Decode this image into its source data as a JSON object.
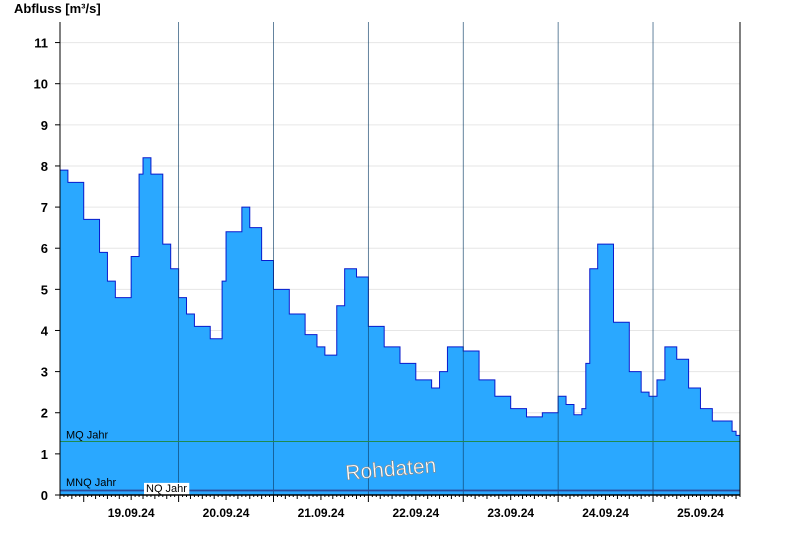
{
  "chart_data": {
    "type": "area",
    "ylabel": "Abfluss [m³/s]",
    "ylim": [
      0,
      11.5
    ],
    "yticks": [
      0,
      1,
      2,
      3,
      4,
      5,
      6,
      7,
      8,
      9,
      10,
      11
    ],
    "xlim": [
      "2024-09-18T18:00",
      "2024-09-25T22:00"
    ],
    "xticks": [
      {
        "label": "19.09.24",
        "x": "2024-09-19T12:00"
      },
      {
        "label": "20.09.24",
        "x": "2024-09-20T12:00"
      },
      {
        "label": "21.09.24",
        "x": "2024-09-21T12:00"
      },
      {
        "label": "22.09.24",
        "x": "2024-09-22T12:00"
      },
      {
        "label": "23.09.24",
        "x": "2024-09-23T12:00"
      },
      {
        "label": "24.09.24",
        "x": "2024-09-24T12:00"
      },
      {
        "label": "25.09.24",
        "x": "2024-09-25T12:00"
      }
    ],
    "day_boundaries": [
      "2024-09-20T00:00",
      "2024-09-21T00:00",
      "2024-09-22T00:00",
      "2024-09-23T00:00",
      "2024-09-24T00:00",
      "2024-09-25T00:00"
    ],
    "grid": true,
    "reference_lines": [
      {
        "label": "MQ Jahr",
        "value": 1.3,
        "color": "#1f8a50"
      },
      {
        "label": "MNQ Jahr",
        "value": 0.12,
        "color": "#2a4a9a"
      },
      {
        "label": "NQ Jahr",
        "value": 0.1,
        "color": "#2a4a9a"
      }
    ],
    "watermark": "Rohdaten",
    "fill_color": "#2aa8ff",
    "line_color": "#0a1acc",
    "series": [
      {
        "x": [
          "2024-09-18T18:00",
          "2024-09-18T20:00",
          "2024-09-19T00:00",
          "2024-09-19T04:00",
          "2024-09-19T06:00",
          "2024-09-19T08:00",
          "2024-09-19T10:00",
          "2024-09-19T12:00",
          "2024-09-19T14:00",
          "2024-09-19T15:00",
          "2024-09-19T17:00",
          "2024-09-19T20:00",
          "2024-09-19T22:00",
          "2024-09-20T00:00",
          "2024-09-20T02:00",
          "2024-09-20T04:00",
          "2024-09-20T08:00",
          "2024-09-20T11:00",
          "2024-09-20T12:00",
          "2024-09-20T16:00",
          "2024-09-20T18:00",
          "2024-09-20T21:00",
          "2024-09-21T00:00",
          "2024-09-21T04:00",
          "2024-09-21T08:00",
          "2024-09-21T11:00",
          "2024-09-21T13:00",
          "2024-09-21T16:00",
          "2024-09-21T18:00",
          "2024-09-21T21:00",
          "2024-09-22T00:00",
          "2024-09-22T04:00",
          "2024-09-22T08:00",
          "2024-09-22T12:00",
          "2024-09-22T16:00",
          "2024-09-22T18:00",
          "2024-09-22T20:00",
          "2024-09-23T00:00",
          "2024-09-23T04:00",
          "2024-09-23T08:00",
          "2024-09-23T12:00",
          "2024-09-23T14:00",
          "2024-09-23T16:00",
          "2024-09-23T20:00",
          "2024-09-24T00:00",
          "2024-09-24T02:00",
          "2024-09-24T04:00",
          "2024-09-24T06:00",
          "2024-09-24T07:00",
          "2024-09-24T08:00",
          "2024-09-24T10:00",
          "2024-09-24T14:00",
          "2024-09-24T18:00",
          "2024-09-24T21:00",
          "2024-09-24T23:00",
          "2024-09-25T01:00",
          "2024-09-25T03:00",
          "2024-09-25T06:00",
          "2024-09-25T09:00",
          "2024-09-25T12:00",
          "2024-09-25T15:00",
          "2024-09-25T20:00",
          "2024-09-25T21:00",
          "2024-09-25T22:00"
        ],
        "values": [
          7.9,
          7.6,
          6.7,
          5.9,
          5.2,
          4.8,
          4.8,
          5.8,
          7.8,
          8.2,
          7.8,
          6.1,
          5.5,
          4.8,
          4.4,
          4.1,
          3.8,
          5.2,
          6.4,
          7.0,
          6.5,
          5.7,
          5.0,
          4.4,
          3.9,
          3.6,
          3.4,
          4.6,
          5.5,
          5.3,
          4.1,
          3.6,
          3.2,
          2.8,
          2.6,
          3.0,
          3.6,
          3.5,
          2.8,
          2.4,
          2.1,
          2.1,
          1.9,
          2.0,
          2.4,
          2.2,
          1.95,
          2.1,
          3.2,
          5.5,
          6.1,
          4.2,
          3.0,
          2.5,
          2.4,
          2.8,
          3.6,
          3.3,
          2.6,
          2.1,
          1.8,
          1.55,
          1.45,
          1.4
        ]
      }
    ]
  }
}
